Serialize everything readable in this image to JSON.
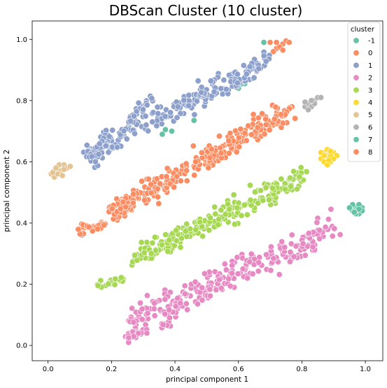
{
  "chart_data": {
    "type": "scatter",
    "title": "DBScan Cluster (10 cluster)",
    "xlabel": "principal component 1",
    "ylabel": "principal component 2",
    "xlim": [
      -0.05,
      1.055
    ],
    "ylim": [
      -0.05,
      1.06
    ],
    "xticks": [
      "0.0",
      "0.2",
      "0.4",
      "0.6",
      "0.8",
      "1.0"
    ],
    "yticks": [
      "0.0",
      "0.2",
      "0.4",
      "0.6",
      "0.8",
      "1.0"
    ],
    "grid": false,
    "legend": {
      "title": "cluster",
      "placement": "top-right",
      "entries": [
        {
          "label": "-1",
          "color": "#66c2a5"
        },
        {
          "label": "0",
          "color": "#fc8d62"
        },
        {
          "label": "1",
          "color": "#8da0cb"
        },
        {
          "label": "2",
          "color": "#e78ac3"
        },
        {
          "label": "3",
          "color": "#a6d854"
        },
        {
          "label": "4",
          "color": "#ffd92f"
        },
        {
          "label": "5",
          "color": "#e5c494"
        },
        {
          "label": "6",
          "color": "#b3b3b3"
        },
        {
          "label": "7",
          "color": "#66c2a5"
        },
        {
          "label": "8",
          "color": "#fc8d62"
        }
      ]
    },
    "series": [
      {
        "name": "-1",
        "color": "#66c2a5",
        "points": [
          [
            0.68,
            0.99
          ],
          [
            0.62,
            0.855
          ],
          [
            0.6,
            0.84
          ],
          [
            0.61,
            0.855
          ],
          [
            0.46,
            0.735
          ],
          [
            0.37,
            0.705
          ],
          [
            0.36,
            0.69
          ],
          [
            0.39,
            0.7
          ]
        ]
      },
      {
        "name": "0",
        "color": "#fc8d62",
        "points": [
          [
            0.7,
            0.99
          ],
          [
            0.72,
            0.97
          ],
          [
            0.74,
            0.985
          ],
          [
            0.75,
            0.995
          ],
          [
            0.73,
            0.975
          ],
          [
            0.71,
            0.96
          ],
          [
            0.76,
            0.99
          ],
          [
            0.74,
            0.965
          ],
          [
            0.72,
            0.99
          ]
        ]
      },
      {
        "name": "1",
        "color": "#8da0cb",
        "segments": [
          {
            "x": [
              0.11,
              0.7
            ],
            "y": [
              0.62,
              0.93
            ],
            "spread": 0.035,
            "n": 210
          },
          {
            "x": [
              0.14,
              0.2
            ],
            "y": [
              0.6,
              0.69
            ],
            "spread": 0.03,
            "n": 45
          },
          {
            "x": [
              0.25,
              0.33
            ],
            "y": [
              0.73,
              0.81
            ],
            "spread": 0.02,
            "n": 25
          }
        ]
      },
      {
        "name": "2",
        "color": "#e78ac3",
        "segments": [
          {
            "x": [
              0.26,
              0.9
            ],
            "y": [
              0.08,
              0.38
            ],
            "spread": 0.045,
            "n": 230
          },
          {
            "x": [
              0.23,
              0.31
            ],
            "y": [
              0.015,
              0.05
            ],
            "spread": 0.015,
            "n": 30
          },
          {
            "x": [
              0.35,
              0.44
            ],
            "y": [
              0.06,
              0.16
            ],
            "spread": 0.03,
            "n": 30
          }
        ]
      },
      {
        "name": "3",
        "color": "#a6d854",
        "segments": [
          {
            "x": [
              0.26,
              0.82
            ],
            "y": [
              0.28,
              0.56
            ],
            "spread": 0.04,
            "n": 220
          },
          {
            "x": [
              0.16,
              0.24
            ],
            "y": [
              0.19,
              0.22
            ],
            "spread": 0.015,
            "n": 25
          }
        ]
      },
      {
        "name": "4",
        "color": "#ffd92f",
        "points": [
          [
            0.86,
            0.61
          ],
          [
            0.87,
            0.63
          ],
          [
            0.88,
            0.62
          ],
          [
            0.89,
            0.6
          ],
          [
            0.9,
            0.63
          ],
          [
            0.88,
            0.64
          ],
          [
            0.87,
            0.6
          ],
          [
            0.89,
            0.62
          ],
          [
            0.91,
            0.62
          ],
          [
            0.86,
            0.63
          ],
          [
            0.88,
            0.59
          ],
          [
            0.9,
            0.61
          ],
          [
            0.87,
            0.62
          ],
          [
            0.89,
            0.635
          ],
          [
            0.885,
            0.605
          ]
        ]
      },
      {
        "name": "5",
        "color": "#e5c494",
        "points": [
          [
            0.01,
            0.56
          ],
          [
            0.02,
            0.57
          ],
          [
            0.03,
            0.58
          ],
          [
            0.04,
            0.57
          ],
          [
            0.05,
            0.59
          ],
          [
            0.02,
            0.55
          ],
          [
            0.04,
            0.56
          ],
          [
            0.06,
            0.58
          ],
          [
            0.03,
            0.56
          ],
          [
            0.05,
            0.575
          ],
          [
            0.015,
            0.565
          ],
          [
            0.035,
            0.59
          ],
          [
            0.045,
            0.555
          ],
          [
            0.07,
            0.585
          ],
          [
            0.025,
            0.58
          ]
        ]
      },
      {
        "name": "6",
        "color": "#b3b3b3",
        "points": [
          [
            0.81,
            0.78
          ],
          [
            0.82,
            0.79
          ],
          [
            0.83,
            0.78
          ],
          [
            0.84,
            0.8
          ],
          [
            0.85,
            0.81
          ],
          [
            0.82,
            0.77
          ],
          [
            0.84,
            0.79
          ],
          [
            0.86,
            0.81
          ],
          [
            0.83,
            0.8
          ],
          [
            0.81,
            0.795
          ]
        ]
      },
      {
        "name": "7",
        "color": "#66c2a5",
        "points": [
          [
            0.96,
            0.44
          ],
          [
            0.97,
            0.45
          ],
          [
            0.98,
            0.43
          ],
          [
            0.99,
            0.45
          ],
          [
            0.97,
            0.43
          ],
          [
            0.96,
            0.46
          ],
          [
            0.98,
            0.46
          ],
          [
            0.99,
            0.44
          ],
          [
            0.97,
            0.44
          ],
          [
            0.95,
            0.45
          ],
          [
            0.98,
            0.445
          ],
          [
            0.965,
            0.435
          ]
        ]
      },
      {
        "name": "8",
        "color": "#fc8d62",
        "segments": [
          {
            "x": [
              0.21,
              0.76
            ],
            "y": [
              0.44,
              0.77
            ],
            "spread": 0.04,
            "n": 260
          },
          {
            "x": [
              0.09,
              0.18
            ],
            "y": [
              0.38,
              0.39
            ],
            "spread": 0.015,
            "n": 40
          },
          {
            "x": [
              0.19,
              0.28
            ],
            "y": [
              0.44,
              0.49
            ],
            "spread": 0.025,
            "n": 40
          }
        ]
      }
    ]
  }
}
